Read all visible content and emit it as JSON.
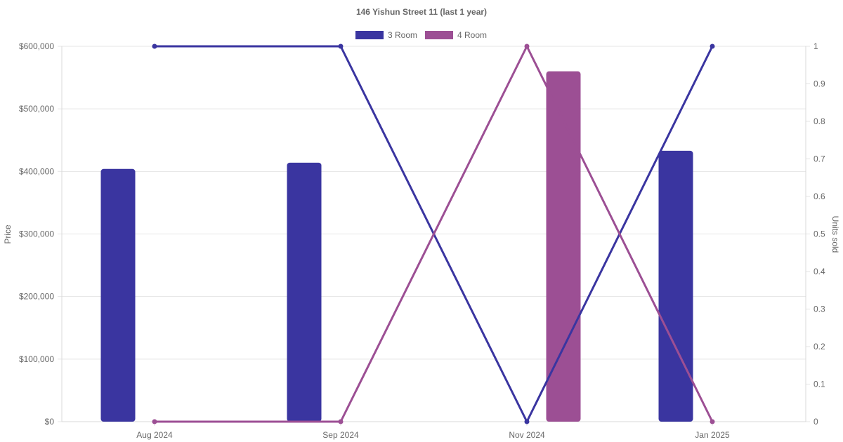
{
  "chart_data": {
    "type": "bar+line",
    "title": "146 Yishun Street 11 (last 1 year)",
    "categories": [
      "Aug 2024",
      "Sep 2024",
      "Nov 2024",
      "Jan 2025"
    ],
    "y_left": {
      "label": "Price",
      "range": [
        0,
        600000
      ],
      "ticks": [
        "$0",
        "$100,000",
        "$200,000",
        "$300,000",
        "$400,000",
        "$500,000",
        "$600,000"
      ]
    },
    "y_right": {
      "label": "Units sold",
      "range": [
        0,
        1
      ],
      "ticks": [
        "0",
        "0.1",
        "0.2",
        "0.3",
        "0.4",
        "0.5",
        "0.6",
        "0.7",
        "0.8",
        "0.9",
        "1"
      ]
    },
    "grid": true,
    "legend_position": "top-center",
    "series": [
      {
        "name": "3 Room",
        "color": "#3a35a0",
        "price": [
          404000,
          414000,
          null,
          433000
        ],
        "units": [
          1,
          1,
          0,
          1
        ]
      },
      {
        "name": "4 Room",
        "color": "#9c4f94",
        "price": [
          null,
          null,
          560000,
          null
        ],
        "units": [
          0,
          0,
          1,
          0
        ]
      }
    ]
  }
}
